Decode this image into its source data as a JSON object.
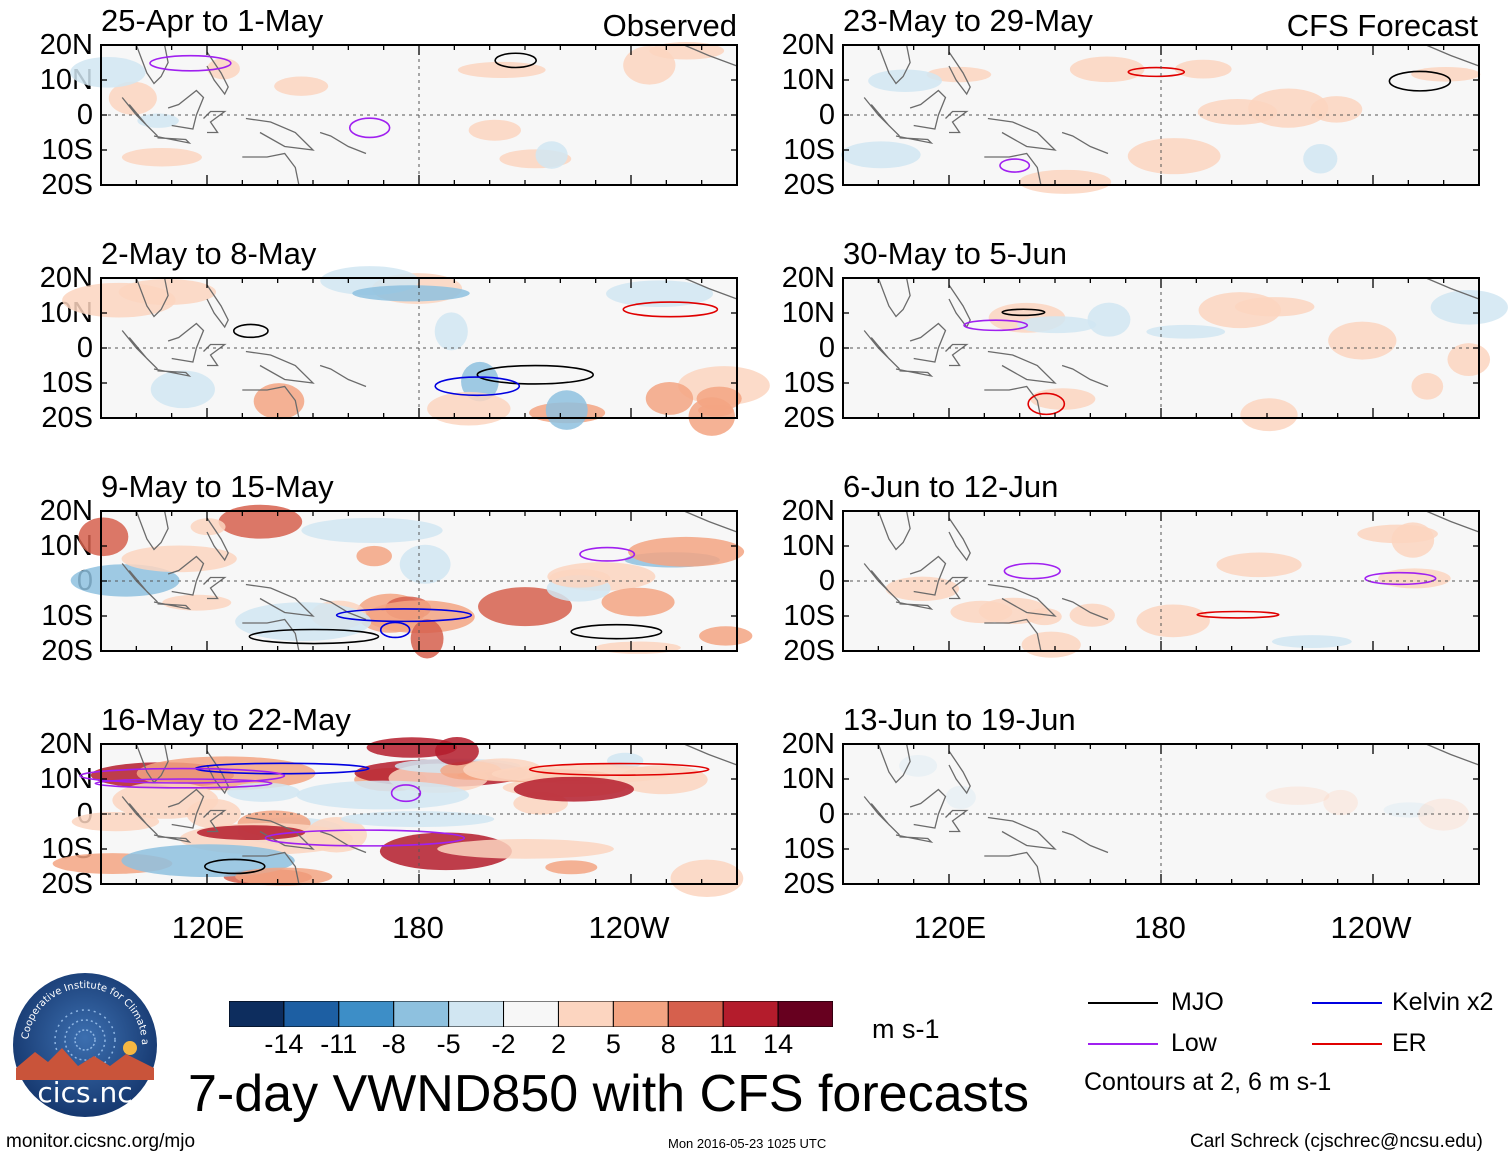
{
  "chart_data": {
    "type": "heatmap",
    "title": "7-day VWND850 with CFS forecasts",
    "units": "m s-1",
    "contour_note": "Contours at 2, 6 m s-1",
    "column_tags": [
      "Observed",
      "CFS Forecast"
    ],
    "lat_ticks": [
      "20N",
      "10N",
      "0",
      "10S",
      "20S"
    ],
    "lon_ticks": [
      "120E",
      "180",
      "120W"
    ],
    "lon_range": [
      90,
      270
    ],
    "lat_range": [
      -20,
      20
    ],
    "colorbar": {
      "tick_labels": [
        "-14",
        "-11",
        "-8",
        "-5",
        "-2",
        "2",
        "5",
        "8",
        "11",
        "14"
      ],
      "colors": [
        "#0d2d5e",
        "#1d5fa3",
        "#3d8ec7",
        "#8ec1df",
        "#d1e6f2",
        "#f7f7f7",
        "#fcd5c0",
        "#f3a482",
        "#d6604d",
        "#b41c2c",
        "#67001f"
      ]
    },
    "legend": [
      {
        "label": "MJO",
        "color": "#000000"
      },
      {
        "label": "Kelvin x2",
        "color": "#0000e0"
      },
      {
        "label": "Low",
        "color": "#a020f0"
      },
      {
        "label": "ER",
        "color": "#e00000"
      }
    ],
    "panels": {
      "observed": [
        {
          "period": "25-Apr to 1-May",
          "intensity": 1
        },
        {
          "period": "2-May to 8-May",
          "intensity": 2
        },
        {
          "period": "9-May to 15-May",
          "intensity": 3
        },
        {
          "period": "16-May to 22-May",
          "intensity": 5
        }
      ],
      "forecast": [
        {
          "period": "23-May to 29-May",
          "intensity": 1
        },
        {
          "period": "30-May to 5-Jun",
          "intensity": 1
        },
        {
          "period": "6-Jun to 12-Jun",
          "intensity": 1
        },
        {
          "period": "13-Jun to 19-Jun",
          "intensity": 0
        }
      ]
    }
  },
  "logo": {
    "text": "cics.nc",
    "ring_text": "Cooperative Institute for Climate and Satellites"
  },
  "footer": {
    "left": "monitor.cicsnc.org/mjo",
    "center": "Mon 2016-05-23 1025 UTC",
    "right": "Carl Schreck (cjschrec@ncsu.edu)"
  }
}
